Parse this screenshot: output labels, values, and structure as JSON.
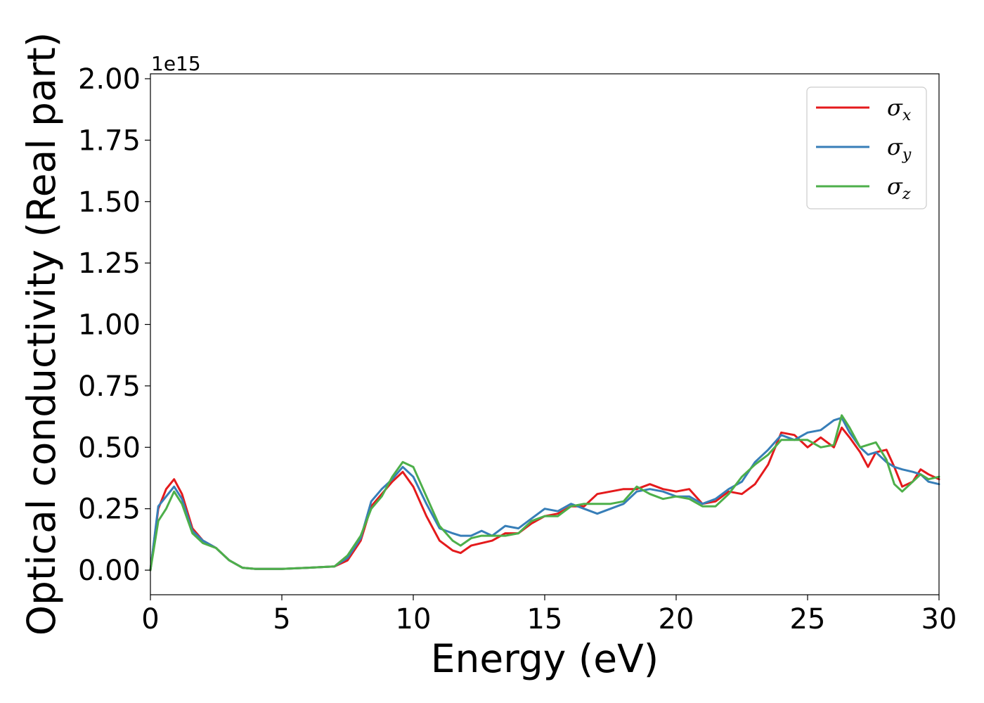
{
  "chart_data": {
    "type": "line",
    "xlabel": "Energy (eV)",
    "ylabel": "Optical conductivity (Real part)",
    "y_offset_label": "1e15",
    "xlim": [
      0,
      30
    ],
    "ylim": [
      -0.1,
      2.02
    ],
    "x_ticks": [
      0,
      5,
      10,
      15,
      20,
      25,
      30
    ],
    "x_tick_labels": [
      "0",
      "5",
      "10",
      "15",
      "20",
      "25",
      "30"
    ],
    "y_ticks": [
      0.0,
      0.25,
      0.5,
      0.75,
      1.0,
      1.25,
      1.5,
      1.75,
      2.0
    ],
    "y_tick_labels": [
      "0.00",
      "0.25",
      "0.50",
      "0.75",
      "1.00",
      "1.25",
      "1.50",
      "1.75",
      "2.00"
    ],
    "grid": false,
    "legend_position": "top-right",
    "series": [
      {
        "name": "σx",
        "symbol": "σ",
        "subscript": "x",
        "color": "#e41a1c",
        "x": [
          0,
          0.3,
          0.6,
          0.9,
          1.2,
          1.6,
          2.0,
          2.5,
          3.0,
          3.5,
          4.0,
          5.0,
          6.0,
          7.0,
          7.5,
          8.0,
          8.4,
          8.8,
          9.2,
          9.6,
          10.0,
          10.5,
          11.0,
          11.5,
          11.8,
          12.2,
          12.6,
          13.0,
          13.5,
          14.0,
          14.5,
          15.0,
          15.5,
          16.0,
          16.5,
          17.0,
          17.5,
          18.0,
          18.5,
          19.0,
          19.5,
          20.0,
          20.5,
          21.0,
          21.5,
          22.0,
          22.5,
          23.0,
          23.5,
          24.0,
          24.5,
          25.0,
          25.5,
          26.0,
          26.3,
          26.6,
          27.0,
          27.3,
          27.6,
          28.0,
          28.3,
          28.6,
          29.0,
          29.3,
          29.6,
          30.0
        ],
        "y": [
          0,
          0.25,
          0.33,
          0.37,
          0.31,
          0.17,
          0.12,
          0.09,
          0.04,
          0.01,
          0.005,
          0.005,
          0.01,
          0.015,
          0.04,
          0.12,
          0.26,
          0.31,
          0.36,
          0.4,
          0.34,
          0.22,
          0.12,
          0.08,
          0.07,
          0.1,
          0.11,
          0.12,
          0.15,
          0.15,
          0.19,
          0.22,
          0.23,
          0.26,
          0.26,
          0.31,
          0.32,
          0.33,
          0.33,
          0.35,
          0.33,
          0.32,
          0.33,
          0.27,
          0.28,
          0.32,
          0.31,
          0.35,
          0.43,
          0.56,
          0.55,
          0.5,
          0.54,
          0.5,
          0.58,
          0.54,
          0.48,
          0.42,
          0.48,
          0.49,
          0.42,
          0.34,
          0.36,
          0.41,
          0.39,
          0.37
        ]
      },
      {
        "name": "σy",
        "symbol": "σ",
        "subscript": "y",
        "color": "#377eb8",
        "x": [
          0,
          0.3,
          0.6,
          0.9,
          1.2,
          1.6,
          2.0,
          2.5,
          3.0,
          3.5,
          4.0,
          5.0,
          6.0,
          7.0,
          7.5,
          8.0,
          8.4,
          8.8,
          9.2,
          9.6,
          10.0,
          10.5,
          11.0,
          11.5,
          11.8,
          12.2,
          12.6,
          13.0,
          13.5,
          14.0,
          14.5,
          15.0,
          15.5,
          16.0,
          16.5,
          17.0,
          17.5,
          18.0,
          18.5,
          19.0,
          19.5,
          20.0,
          20.5,
          21.0,
          21.5,
          22.0,
          22.5,
          23.0,
          23.5,
          24.0,
          24.5,
          25.0,
          25.5,
          26.0,
          26.3,
          26.6,
          27.0,
          27.3,
          27.6,
          28.0,
          28.3,
          28.6,
          29.0,
          29.3,
          29.6,
          30.0
        ],
        "y": [
          0,
          0.26,
          0.3,
          0.34,
          0.29,
          0.16,
          0.12,
          0.09,
          0.04,
          0.01,
          0.005,
          0.005,
          0.01,
          0.015,
          0.05,
          0.13,
          0.28,
          0.33,
          0.37,
          0.42,
          0.38,
          0.27,
          0.17,
          0.15,
          0.14,
          0.14,
          0.16,
          0.14,
          0.18,
          0.17,
          0.21,
          0.25,
          0.24,
          0.27,
          0.25,
          0.23,
          0.25,
          0.27,
          0.32,
          0.33,
          0.32,
          0.3,
          0.3,
          0.27,
          0.29,
          0.33,
          0.36,
          0.44,
          0.49,
          0.55,
          0.53,
          0.56,
          0.57,
          0.61,
          0.62,
          0.56,
          0.5,
          0.47,
          0.48,
          0.44,
          0.42,
          0.41,
          0.4,
          0.39,
          0.36,
          0.35
        ]
      },
      {
        "name": "σz",
        "symbol": "σ",
        "subscript": "z",
        "color": "#4daf4a",
        "x": [
          0,
          0.3,
          0.6,
          0.9,
          1.2,
          1.6,
          2.0,
          2.5,
          3.0,
          3.5,
          4.0,
          5.0,
          6.0,
          7.0,
          7.5,
          8.0,
          8.4,
          8.8,
          9.2,
          9.6,
          10.0,
          10.5,
          11.0,
          11.5,
          11.8,
          12.2,
          12.6,
          13.0,
          13.5,
          14.0,
          14.5,
          15.0,
          15.5,
          16.0,
          16.5,
          17.0,
          17.5,
          18.0,
          18.5,
          19.0,
          19.5,
          20.0,
          20.5,
          21.0,
          21.5,
          22.0,
          22.5,
          23.0,
          23.5,
          24.0,
          24.5,
          25.0,
          25.5,
          26.0,
          26.3,
          26.6,
          27.0,
          27.3,
          27.6,
          28.0,
          28.3,
          28.6,
          29.0,
          29.3,
          29.6,
          30.0
        ],
        "y": [
          0,
          0.2,
          0.25,
          0.32,
          0.27,
          0.15,
          0.11,
          0.09,
          0.04,
          0.01,
          0.005,
          0.005,
          0.01,
          0.015,
          0.06,
          0.14,
          0.25,
          0.3,
          0.38,
          0.44,
          0.42,
          0.3,
          0.18,
          0.12,
          0.1,
          0.13,
          0.14,
          0.14,
          0.14,
          0.15,
          0.2,
          0.22,
          0.22,
          0.26,
          0.27,
          0.27,
          0.27,
          0.28,
          0.34,
          0.31,
          0.29,
          0.3,
          0.29,
          0.26,
          0.26,
          0.31,
          0.38,
          0.43,
          0.47,
          0.53,
          0.53,
          0.53,
          0.5,
          0.51,
          0.63,
          0.58,
          0.5,
          0.51,
          0.52,
          0.45,
          0.35,
          0.32,
          0.36,
          0.39,
          0.37,
          0.38
        ]
      }
    ]
  }
}
